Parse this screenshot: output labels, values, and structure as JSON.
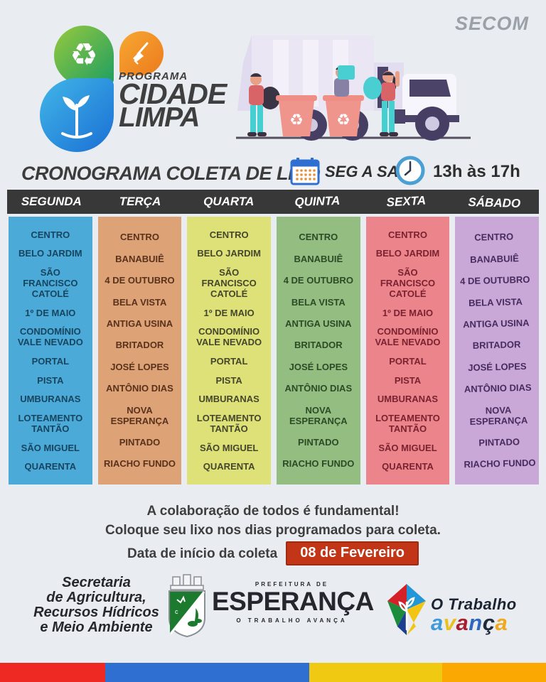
{
  "page": {
    "bg": "#e9edf1",
    "secom": "SECOM"
  },
  "logo": {
    "program": "PROGRAMA",
    "title_line1": "CIDADE",
    "title_line2": "LIMPA",
    "recycle_glyph": "♻"
  },
  "schedule_header": {
    "title": "CRONOGRAMA COLETA DE LIXO",
    "days_range": "SEG A SAB",
    "hours": "13h às 17h"
  },
  "table": {
    "columns": [
      {
        "day": "SEGUNDA",
        "bg": "#4caad9",
        "fg": "#17455f",
        "items": [
          "CENTRO",
          "BELO JARDIM",
          "SÃO FRANCISCO CATOLÉ",
          "1º DE MAIO",
          "CONDOMÍNIO VALE NEVADO",
          "PORTAL",
          "PISTA",
          "UMBURANAS",
          "LOTEAMENTO TANTÃO",
          "SÃO MIGUEL",
          "QUARENTA"
        ]
      },
      {
        "day": "TERÇA",
        "bg": "#dda276",
        "fg": "#59321c",
        "items": [
          "CENTRO",
          "BANABUIÊ",
          "4 DE OUTUBRO",
          "BELA VISTA",
          "ANTIGA USINA",
          "BRITADOR",
          "JOSÉ LOPES",
          "ANTÔNIO DIAS",
          "NOVA ESPERANÇA",
          "PINTADO",
          "RIACHO FUNDO"
        ]
      },
      {
        "day": "QUARTA",
        "bg": "#dde177",
        "fg": "#45462c",
        "items": [
          "CENTRO",
          "BELO JARDIM",
          "SÃO FRANCISCO CATOLÉ",
          "1º DE MAIO",
          "CONDOMÍNIO VALE NEVADO",
          "PORTAL",
          "PISTA",
          "UMBURANAS",
          "LOTEAMENTO TANTÃO",
          "SÃO MIGUEL",
          "QUARENTA"
        ]
      },
      {
        "day": "QUINTA",
        "bg": "#94bd81",
        "fg": "#2c4b26",
        "items": [
          "CENTRO",
          "BANABUIÊ",
          "4 DE OUTUBRO",
          "BELA VISTA",
          "ANTIGA USINA",
          "BRITADOR",
          "JOSÉ LOPES",
          "ANTÔNIO DIAS",
          "NOVA ESPERANÇA",
          "PINTADO",
          "RIACHO FUNDO"
        ]
      },
      {
        "day": "SEXTA",
        "bg": "#ec858b",
        "fg": "#7a2230",
        "items": [
          "CENTRO",
          "BELO JARDIM",
          "SÃO FRANCISCO CATOLÉ",
          "1º DE MAIO",
          "CONDOMÍNIO VALE NEVADO",
          "PORTAL",
          "PISTA",
          "UMBURANAS",
          "LOTEAMENTO TANTÃO",
          "SÃO MIGUEL",
          "QUARENTA"
        ]
      },
      {
        "day": "SÁBADO",
        "bg": "#c9a8d8",
        "fg": "#472b5e",
        "items": [
          "CENTRO",
          "BANABUIÊ",
          "4 DE OUTUBRO",
          "BELA VISTA",
          "ANTIGA USINA",
          "BRITADOR",
          "JOSÉ LOPES",
          "ANTÔNIO DIAS",
          "NOVA ESPERANÇA",
          "PINTADO",
          "RIACHO FUNDO"
        ]
      }
    ]
  },
  "footer_note": {
    "line1": "A colaboração de todos é fundamental!",
    "line2": "Coloque seu lixo nos dias programados para coleta.",
    "line3": "Data de início da coleta",
    "badge": "08 de Fevereiro",
    "badge_bg": "#c23517"
  },
  "footer": {
    "secretary_lines": [
      "Secretaria",
      "de Agricultura,",
      "Recursos Hídricos",
      "e Meio Ambiente"
    ],
    "prefeitura_small": "PREFEITURA DE",
    "prefeitura_name": "ESPERANÇA",
    "prefeitura_slogan": "O TRABALHO AVANÇA",
    "slogan_line1": "O Trabalho",
    "avanca_letters": [
      {
        "ch": "a",
        "color": "#3e9ad8"
      },
      {
        "ch": "v",
        "color": "#ebc11c"
      },
      {
        "ch": "a",
        "color": "#a81f2f"
      },
      {
        "ch": "n",
        "color": "#2e66c0"
      },
      {
        "ch": "ç",
        "color": "#1f2a3a"
      },
      {
        "ch": "a",
        "color": "#f0a81c"
      }
    ]
  },
  "stripes": [
    "#ee2823",
    "#2f6fd1",
    "#f0c913",
    "#fca803"
  ]
}
